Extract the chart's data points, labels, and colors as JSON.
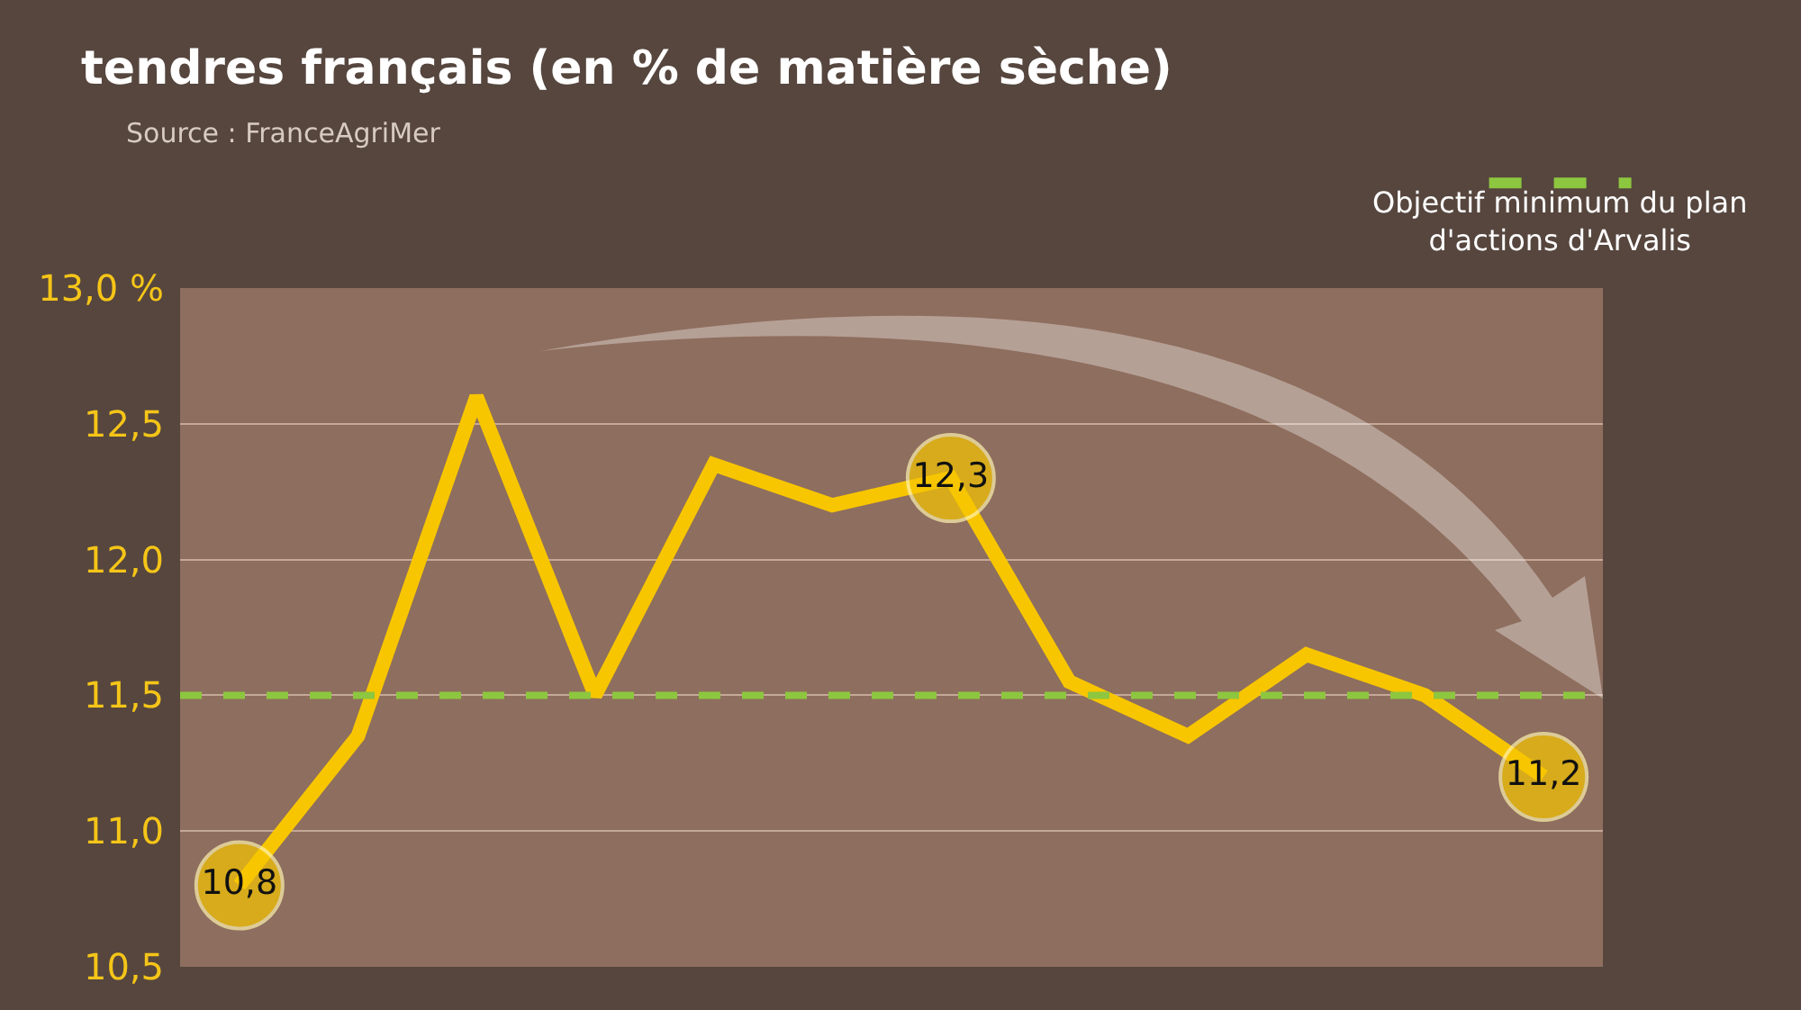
{
  "chart_data": {
    "type": "line",
    "title": "tendres français (en % de matière sèche)",
    "categories": [
      null,
      null,
      null,
      null,
      null,
      null,
      null,
      null,
      null,
      null,
      null,
      null
    ],
    "series": [
      {
        "color": "#f7c600",
        "values": [
          10.8,
          11.35,
          12.6,
          11.5,
          12.35,
          12.2,
          12.3,
          11.55,
          11.35,
          11.65,
          11.5,
          11.2
        ],
        "value_labels": [
          "10,8",
          null,
          null,
          null,
          null,
          null,
          "12,3",
          null,
          null,
          null,
          null,
          "11,2"
        ]
      }
    ],
    "ylim": [
      10.5,
      13.0
    ],
    "yticks": [
      {
        "value": 10.5,
        "label": "10,5"
      },
      {
        "value": 11.0,
        "label": "11,0"
      },
      {
        "value": 11.5,
        "label": "11,5"
      },
      {
        "value": 12.0,
        "label": "12,0"
      },
      {
        "value": 12.5,
        "label": "12,5"
      },
      {
        "value": 13.0,
        "label": "13,0 %"
      }
    ],
    "grid": "y",
    "ref_lines": [
      {
        "axis": "y",
        "value": 11.5,
        "label": "Objectif minimum du plan d'actions d'Arvalis",
        "color": "#8dc63f",
        "line_style": "dashed"
      }
    ],
    "annotations": [
      "Source : FranceAgriMer"
    ]
  }
}
